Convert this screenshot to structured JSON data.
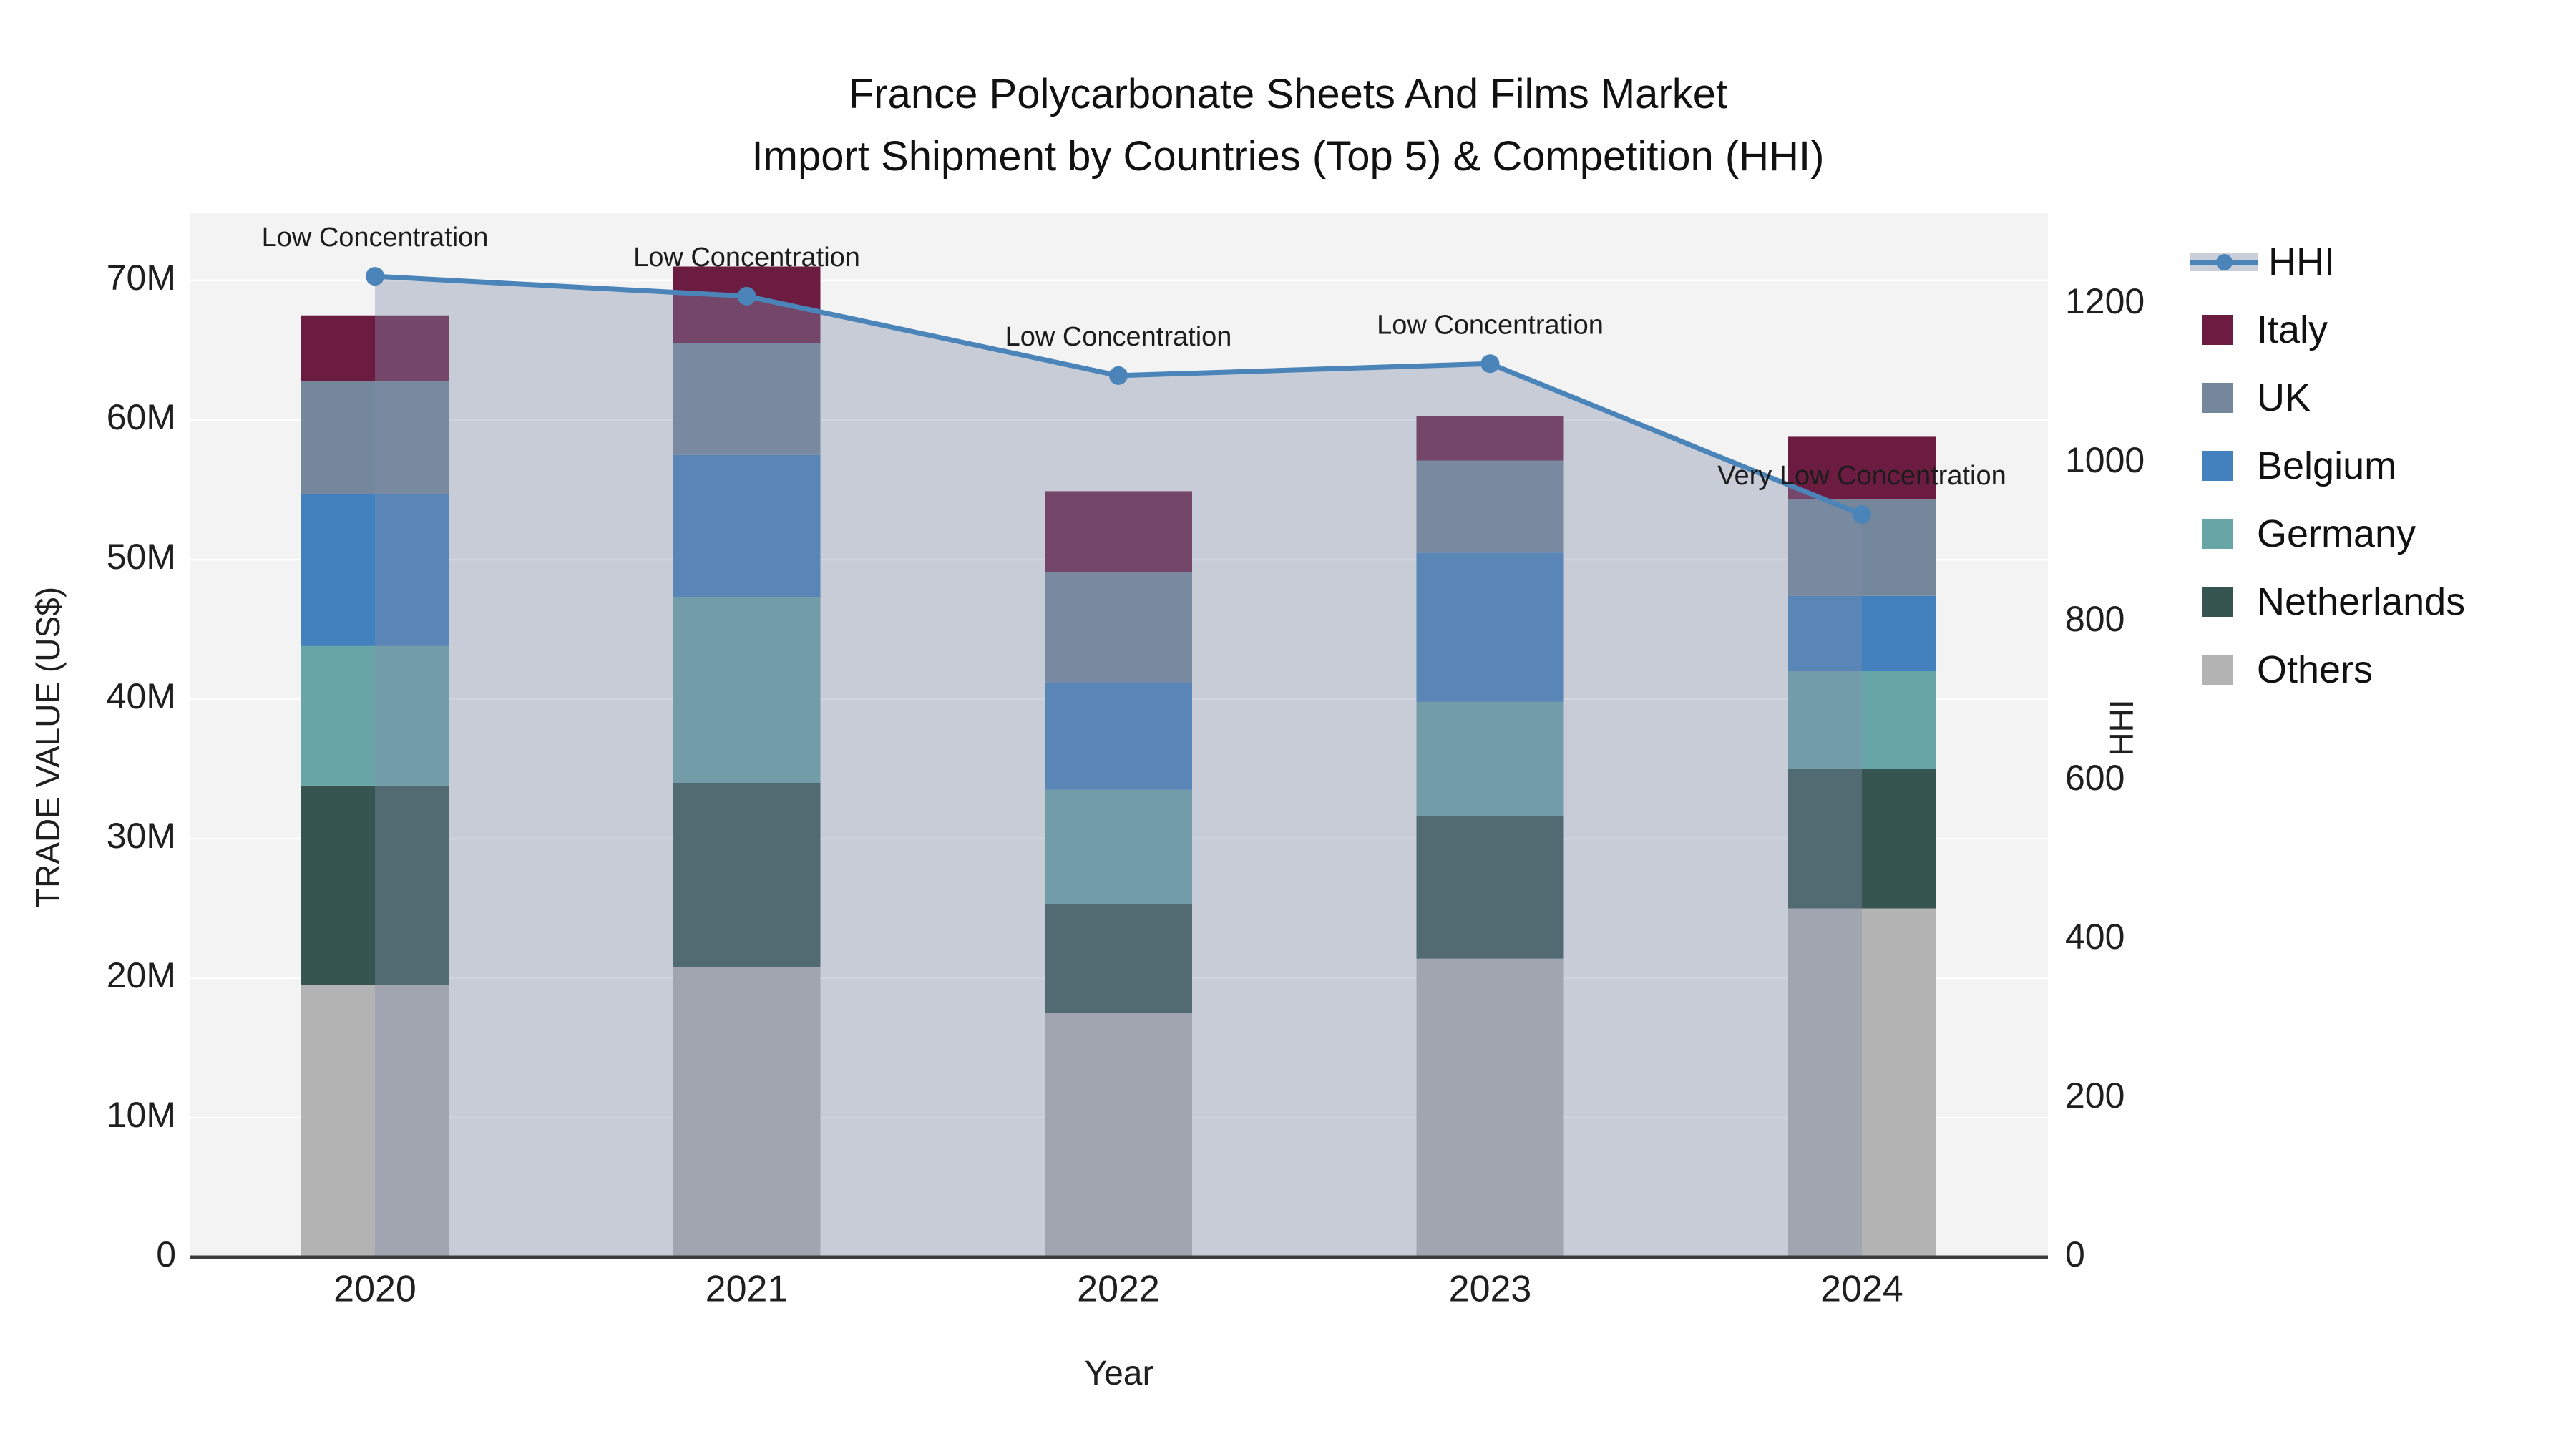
{
  "title": {
    "line1": "France Polycarbonate Sheets And Films Market",
    "line2": "Import Shipment by Countries (Top 5) & Competition (HHI)"
  },
  "axes": {
    "left": {
      "title": "TRADE VALUE (US$)",
      "tick_labels": [
        "0",
        "10M",
        "20M",
        "30M",
        "40M",
        "50M",
        "60M",
        "70M"
      ],
      "tick_values_millions": [
        0,
        10,
        20,
        30,
        40,
        50,
        60,
        70
      ]
    },
    "right": {
      "title": "HHI",
      "tick_labels": [
        "0",
        "200",
        "400",
        "600",
        "800",
        "1000",
        "1200"
      ],
      "tick_values": [
        0,
        200,
        400,
        600,
        800,
        1000,
        1200
      ]
    },
    "x": {
      "title": "Year",
      "tick_labels": [
        "2020",
        "2021",
        "2022",
        "2023",
        "2024"
      ]
    }
  },
  "chart_data": {
    "type": "bar",
    "subtype": "stacked bars with overlaid line (dual axis)",
    "categories": [
      "2020",
      "2021",
      "2022",
      "2023",
      "2024"
    ],
    "value_unit": "US$ millions (left axis), HHI index (right axis)",
    "series": [
      {
        "name": "Others",
        "color": "#b3b3b3",
        "values": [
          19.5,
          20.8,
          17.5,
          21.4,
          25.0
        ]
      },
      {
        "name": "Netherlands",
        "color": "#365550",
        "values": [
          14.3,
          13.2,
          7.8,
          10.2,
          10.0
        ]
      },
      {
        "name": "Germany",
        "color": "#68a5a6",
        "values": [
          10.0,
          13.3,
          8.2,
          8.2,
          7.0
        ]
      },
      {
        "name": "Belgium",
        "color": "#4281bd",
        "values": [
          10.9,
          10.2,
          7.7,
          10.7,
          5.4
        ]
      },
      {
        "name": "UK",
        "color": "#75879a",
        "values": [
          8.1,
          8.0,
          7.9,
          6.6,
          6.9
        ]
      },
      {
        "name": "Italy",
        "color": "#6c1b41",
        "values": [
          4.7,
          5.5,
          5.8,
          3.2,
          4.5
        ]
      }
    ],
    "stack_totals_millions": [
      67.5,
      71.0,
      54.9,
      60.3,
      58.8
    ],
    "line_series": {
      "name": "HHI",
      "axis": "right",
      "color": "#4a84b8",
      "area_fill_color": "rgba(130,143,170,0.38)",
      "values": [
        1235,
        1210,
        1110,
        1125,
        935
      ]
    },
    "annotations": [
      {
        "x": "2020",
        "label": "Low Concentration"
      },
      {
        "x": "2021",
        "label": "Low Concentration"
      },
      {
        "x": "2022",
        "label": "Low Concentration"
      },
      {
        "x": "2023",
        "label": "Low Concentration"
      },
      {
        "x": "2024",
        "label": "Very Low Concentration"
      }
    ],
    "legend_order": [
      "HHI",
      "Italy",
      "UK",
      "Belgium",
      "Germany",
      "Netherlands",
      "Others"
    ],
    "legend_position": "right",
    "grid": true,
    "ylim_left_millions": [
      0,
      74.8
    ],
    "ylim_right": [
      0,
      1314
    ]
  },
  "colors": {
    "plot_bg": "#f3f3f3",
    "gridline": "#ffffff",
    "axis_line": "#3c3c3c",
    "annotation_text": "#1c1c1c",
    "tick_text": "#1f1f1f"
  }
}
